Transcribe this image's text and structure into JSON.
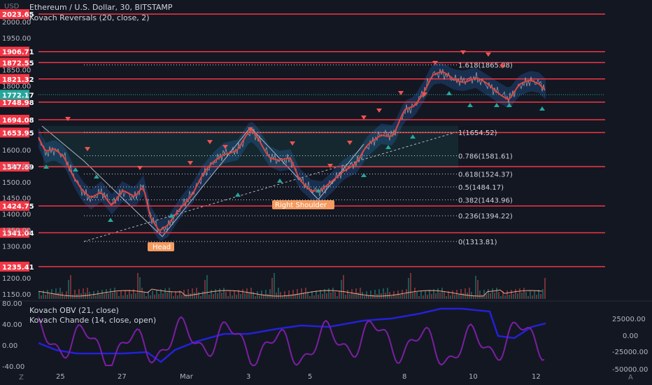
{
  "header": {
    "currency": "USD",
    "symbol_line": "Ethereum / U.S. Dollar, 30, BITSTAMP",
    "indicator_main": "Kovach Reversals (20, close, 2)",
    "indicator_sub1": "Kovach OBV (21, close)",
    "indicator_sub2": "Kovach Chande (14, close, open)"
  },
  "price_axis": {
    "ticks": [
      "2000.00",
      "1950.00",
      "1850.00",
      "1800.00",
      "1600.00",
      "1550.00",
      "1500.00",
      "1450.00",
      "1400.00",
      "1350.00",
      "1300.00",
      "1200.00",
      "1150.00"
    ],
    "tick_values": [
      2000,
      1950,
      1850,
      1800,
      1600,
      1550,
      1500,
      1450,
      1400,
      1350,
      1300,
      1200,
      1150
    ]
  },
  "levels": [
    {
      "label": "2023.65",
      "value": 2023.65
    },
    {
      "label": "1906.71",
      "value": 1906.71
    },
    {
      "label": "1872.55",
      "value": 1872.55
    },
    {
      "label": "1821.32",
      "value": 1821.32
    },
    {
      "label": "1748.98",
      "value": 1748.98
    },
    {
      "label": "1694.08",
      "value": 1694.08
    },
    {
      "label": "1653.95",
      "value": 1653.95
    },
    {
      "label": "1547.69",
      "value": 1547.69
    },
    {
      "label": "1424.75",
      "value": 1424.75
    },
    {
      "label": "1341.04",
      "value": 1341.04
    },
    {
      "label": "1235.41",
      "value": 1235.41
    }
  ],
  "current_price": {
    "label": "1772.17",
    "value": 1772.17
  },
  "fibonacci": [
    {
      "label": "1.618(1865.08)",
      "value": 1865.08
    },
    {
      "label": "1(1654.52)",
      "value": 1654.52
    },
    {
      "label": "0.786(1581.61)",
      "value": 1581.61
    },
    {
      "label": "0.618(1524.37)",
      "value": 1524.37
    },
    {
      "label": "0.5(1484.17)",
      "value": 1484.17
    },
    {
      "label": "0.382(1443.96)",
      "value": 1443.96
    },
    {
      "label": "0.236(1394.22)",
      "value": 1394.22
    },
    {
      "label": "0(1313.81)",
      "value": 1313.81
    }
  ],
  "annotations": {
    "head": "Head",
    "right_shoulder": "Right Shoulder"
  },
  "time_axis": [
    "25",
    "27",
    "Mar",
    "3",
    "5",
    "8",
    "10",
    "12"
  ],
  "oscillator_axis": [
    "80.00",
    "40.00",
    "0.00",
    "-40.00"
  ],
  "obv_axis": [
    "25000.00",
    "0.00",
    "-25000.00",
    "-50000.00"
  ],
  "icons": {
    "timezone": "Z",
    "scale_auto": "A"
  },
  "colors": {
    "level": "#f23645",
    "price_label": "#26a69a",
    "price_line": "#e0443f",
    "up": "#26a69a",
    "down": "#ef5350",
    "obv": "#2421d8",
    "chande": "#7b1fa2"
  }
}
